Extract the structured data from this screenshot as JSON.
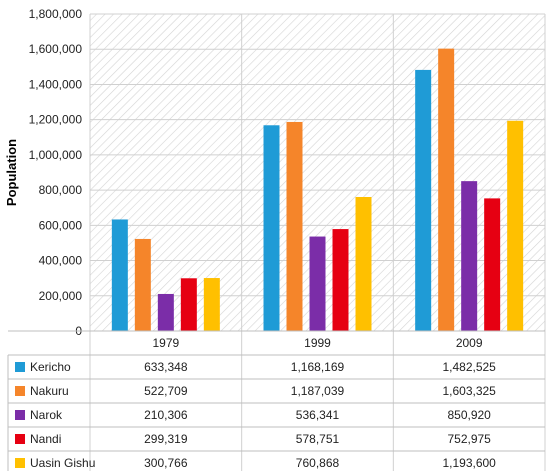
{
  "chart_data": {
    "type": "bar",
    "title": "",
    "xlabel": "",
    "ylabel": "Population",
    "ylim": [
      0,
      1800000
    ],
    "yticks": [
      0,
      200000,
      400000,
      600000,
      800000,
      1000000,
      1200000,
      1400000,
      1600000,
      1800000
    ],
    "ytick_labels": [
      "0",
      "200,000",
      "400,000",
      "600,000",
      "800,000",
      "1,000,000",
      "1,200,000",
      "1,400,000",
      "1,600,000",
      "1,800,000"
    ],
    "categories": [
      "1979",
      "1999",
      "2009"
    ],
    "series": [
      {
        "name": "Kericho",
        "color": "#1f9bd6",
        "values": [
          633348,
          1168169,
          1482525
        ],
        "labels": [
          "633,348",
          "1,168,169",
          "1,482,525"
        ]
      },
      {
        "name": "Nakuru",
        "color": "#f5852a",
        "values": [
          522709,
          1187039,
          1603325
        ],
        "labels": [
          "522,709",
          "1,187,039",
          "1,603,325"
        ]
      },
      {
        "name": "Narok",
        "color": "#7b2da8",
        "values": [
          210306,
          536341,
          850920
        ],
        "labels": [
          "210,306",
          "536,341",
          "850,920"
        ]
      },
      {
        "name": "Nandi",
        "color": "#e60012",
        "values": [
          299319,
          578751,
          752975
        ],
        "labels": [
          "299,319",
          "578,751",
          "752,975"
        ]
      },
      {
        "name": "Uasin Gishu",
        "color": "#ffc000",
        "values": [
          300766,
          760868,
          1193600
        ],
        "labels": [
          "300,766",
          "760,868",
          "1,193,600"
        ]
      }
    ],
    "grid": true,
    "plot_background": "diagonal hatch",
    "legend": "data table below chart"
  }
}
